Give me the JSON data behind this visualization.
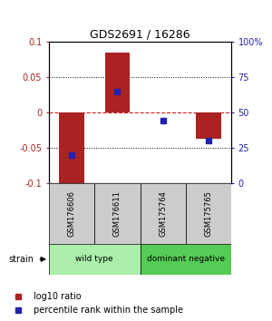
{
  "title": "GDS2691 / 16286",
  "samples": [
    "GSM176606",
    "GSM176611",
    "GSM175764",
    "GSM175765"
  ],
  "log10_ratio": [
    -0.1,
    0.085,
    0.0,
    -0.038
  ],
  "percentile_rank": [
    20,
    65,
    44,
    30
  ],
  "left_ylim": [
    -0.1,
    0.1
  ],
  "right_ylim": [
    0,
    100
  ],
  "left_yticks": [
    -0.1,
    -0.05,
    0,
    0.05,
    0.1
  ],
  "right_yticks": [
    0,
    25,
    50,
    75,
    100
  ],
  "left_yticklabels": [
    "-0.1",
    "-0.05",
    "0",
    "0.05",
    "0.1"
  ],
  "right_yticklabels": [
    "0",
    "25",
    "50",
    "75",
    "100%"
  ],
  "bar_color": "#aa2222",
  "dot_color": "#2222aa",
  "hline_color": "#cc2222",
  "grid_color": "#000000",
  "groups": [
    {
      "label": "wild type",
      "indices": [
        0,
        1
      ],
      "color": "#aaeeaa"
    },
    {
      "label": "dominant negative",
      "indices": [
        2,
        3
      ],
      "color": "#55cc55"
    }
  ],
  "strain_label": "strain",
  "legend_ratio_label": "log10 ratio",
  "legend_pct_label": "percentile rank within the sample",
  "bar_width": 0.55,
  "dot_size": 5,
  "sample_panel_color": "#cccccc",
  "bg_color": "#ffffff"
}
